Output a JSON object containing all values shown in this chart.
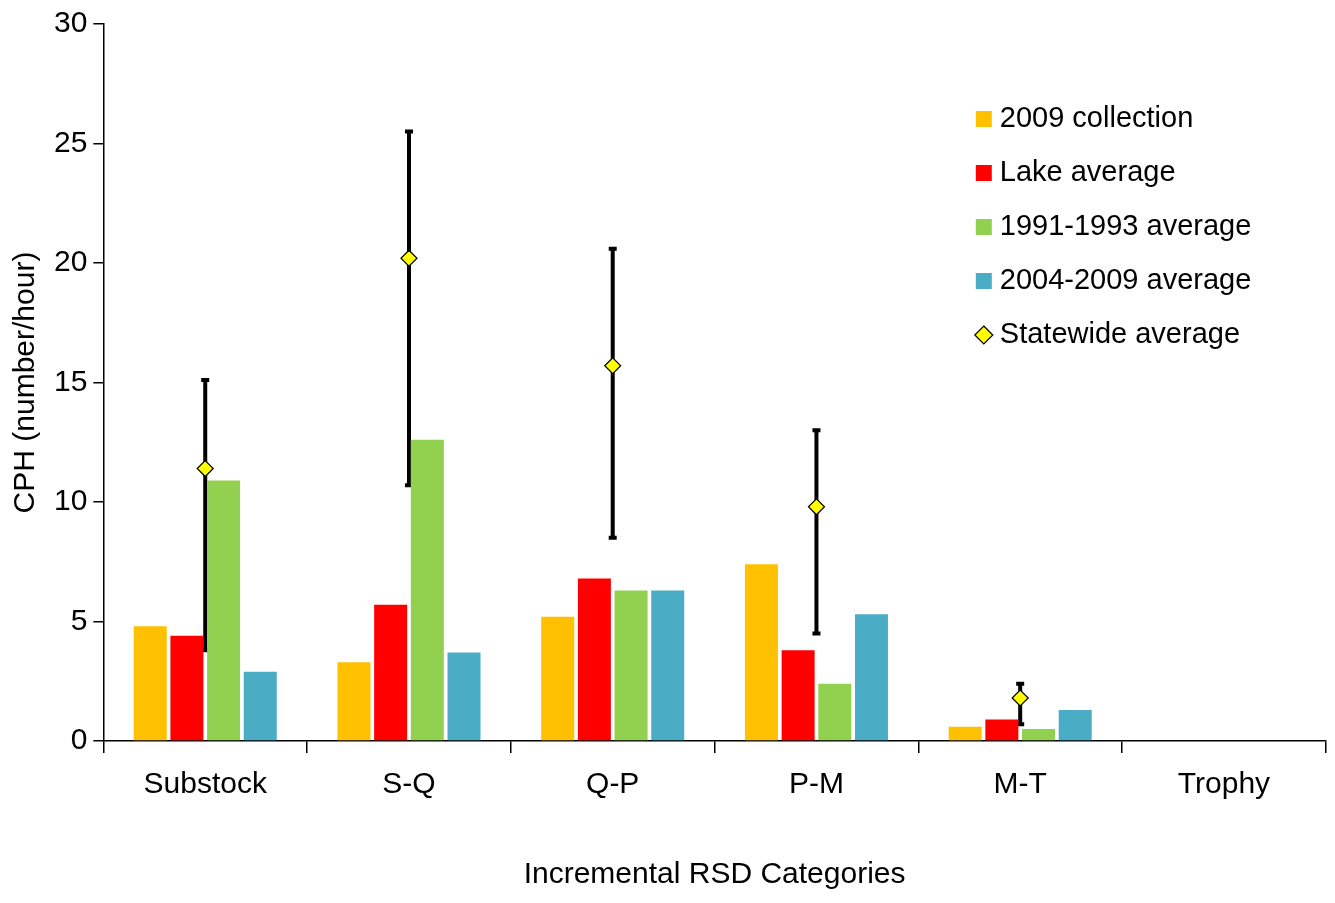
{
  "chart_data": {
    "type": "bar",
    "xlabel": "Incremental RSD Categories",
    "ylabel": "CPH (number/hour)",
    "categories": [
      "Substock",
      "S-Q",
      "Q-P",
      "P-M",
      "M-T",
      "Trophy"
    ],
    "ylim": [
      0,
      30
    ],
    "yticks": [
      0,
      5,
      10,
      15,
      20,
      25,
      30
    ],
    "grid": false,
    "legend": "top right",
    "series": [
      {
        "name": "2009 collection",
        "color": "#ffc000",
        "values": [
          4.8,
          3.3,
          5.2,
          7.4,
          0.6,
          0
        ]
      },
      {
        "name": "Lake average",
        "color": "#ff0000",
        "values": [
          4.4,
          5.7,
          6.8,
          3.8,
          0.9,
          0
        ]
      },
      {
        "name": "1991-1993 average",
        "color": "#92d050",
        "values": [
          10.9,
          12.6,
          6.3,
          2.4,
          0.5,
          0
        ]
      },
      {
        "name": "2004-2009 average",
        "color": "#4bacc6",
        "values": [
          2.9,
          3.7,
          6.3,
          5.3,
          1.3,
          0
        ]
      },
      {
        "name": "Statewide average",
        "type": "scatter",
        "marker": "diamond",
        "color": "#ffff00",
        "x": [
          "Substock",
          "S-Q",
          "Q-P",
          "P-M",
          "M-T",
          "Trophy"
        ],
        "values": [
          11.4,
          20.2,
          15.7,
          9.8,
          1.8,
          null
        ],
        "errors": [
          [
            3.8,
            15.1
          ],
          [
            10.7,
            25.5
          ],
          [
            8.5,
            20.6
          ],
          [
            4.5,
            13.0
          ],
          [
            0.7,
            2.4
          ],
          null
        ]
      }
    ]
  }
}
